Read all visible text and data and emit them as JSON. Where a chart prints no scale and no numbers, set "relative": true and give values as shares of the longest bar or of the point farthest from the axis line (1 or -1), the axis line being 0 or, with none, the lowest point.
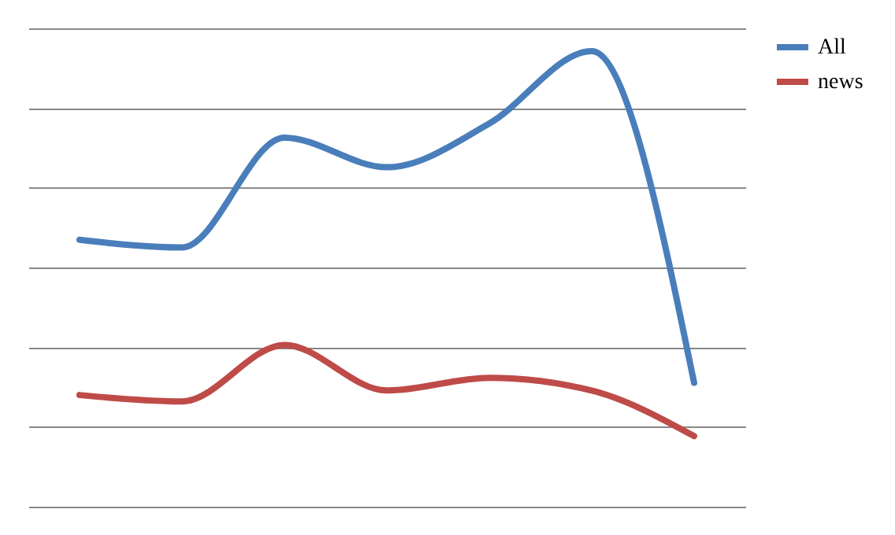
{
  "chart_data": {
    "type": "line",
    "relative": true,
    "categories": [
      null,
      null,
      null,
      null,
      null,
      null,
      null
    ],
    "series": [
      {
        "name": "All",
        "color": "#4a7ebb",
        "values": [
          0.586,
          0.569,
          0.81,
          0.745,
          0.841,
          1,
          0.272
        ]
      },
      {
        "name": "news",
        "color": "#be4b48",
        "values": [
          0.245,
          0.231,
          0.355,
          0.255,
          0.283,
          0.255,
          0.155
        ]
      }
    ],
    "grid": "y",
    "legend": "right",
    "line_style": "solid",
    "marker": "none"
  }
}
